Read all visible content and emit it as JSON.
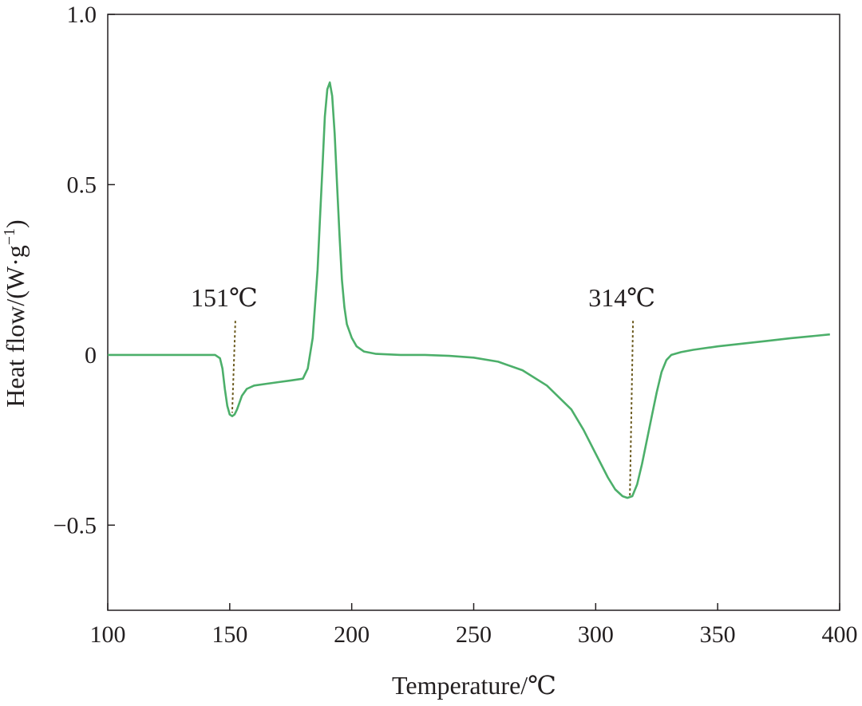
{
  "chart_data": {
    "type": "line",
    "xlabel": "Temperature/℃",
    "ylabel": "Heat flow/(W·g",
    "ylabel_sup": "−1",
    "ylabel_close": ")",
    "xlim": [
      100,
      400
    ],
    "ylim": [
      -0.75,
      1.0
    ],
    "x_ticks": [
      100,
      150,
      200,
      250,
      300,
      350,
      400
    ],
    "x_tick_labels": [
      "100",
      "150",
      "200",
      "250",
      "300",
      "350",
      "400"
    ],
    "y_ticks": [
      1.0,
      0.5,
      0,
      -0.5
    ],
    "y_tick_labels": [
      "1.0",
      "0.5",
      "0",
      "−0.5"
    ],
    "grid": false,
    "series_color": "#4caf6a",
    "marker_line_color": "#6b5a1e",
    "series": [
      {
        "points": [
          [
            100,
            0.0
          ],
          [
            110,
            0.0
          ],
          [
            120,
            0.0
          ],
          [
            130,
            0.0
          ],
          [
            140,
            0.0
          ],
          [
            144,
            0.0
          ],
          [
            146,
            -0.01
          ],
          [
            147,
            -0.04
          ],
          [
            148,
            -0.1
          ],
          [
            149,
            -0.15
          ],
          [
            150,
            -0.175
          ],
          [
            151,
            -0.18
          ],
          [
            152,
            -0.175
          ],
          [
            153,
            -0.16
          ],
          [
            154,
            -0.14
          ],
          [
            155,
            -0.12
          ],
          [
            157,
            -0.1
          ],
          [
            160,
            -0.09
          ],
          [
            165,
            -0.085
          ],
          [
            170,
            -0.08
          ],
          [
            175,
            -0.075
          ],
          [
            180,
            -0.07
          ],
          [
            182,
            -0.04
          ],
          [
            184,
            0.05
          ],
          [
            186,
            0.25
          ],
          [
            187,
            0.4
          ],
          [
            188,
            0.55
          ],
          [
            189,
            0.7
          ],
          [
            190,
            0.78
          ],
          [
            191,
            0.8
          ],
          [
            192,
            0.76
          ],
          [
            193,
            0.65
          ],
          [
            194,
            0.5
          ],
          [
            195,
            0.35
          ],
          [
            196,
            0.22
          ],
          [
            197,
            0.14
          ],
          [
            198,
            0.09
          ],
          [
            200,
            0.05
          ],
          [
            202,
            0.025
          ],
          [
            205,
            0.01
          ],
          [
            210,
            0.003
          ],
          [
            220,
            0.0
          ],
          [
            230,
            0.0
          ],
          [
            240,
            -0.003
          ],
          [
            250,
            -0.008
          ],
          [
            260,
            -0.02
          ],
          [
            270,
            -0.045
          ],
          [
            280,
            -0.09
          ],
          [
            290,
            -0.16
          ],
          [
            295,
            -0.22
          ],
          [
            300,
            -0.29
          ],
          [
            305,
            -0.36
          ],
          [
            308,
            -0.395
          ],
          [
            311,
            -0.415
          ],
          [
            313,
            -0.42
          ],
          [
            315,
            -0.415
          ],
          [
            317,
            -0.38
          ],
          [
            319,
            -0.32
          ],
          [
            321,
            -0.25
          ],
          [
            323,
            -0.18
          ],
          [
            325,
            -0.11
          ],
          [
            327,
            -0.05
          ],
          [
            329,
            -0.015
          ],
          [
            331,
            0.0
          ],
          [
            335,
            0.008
          ],
          [
            340,
            0.015
          ],
          [
            350,
            0.025
          ],
          [
            360,
            0.033
          ],
          [
            370,
            0.041
          ],
          [
            380,
            0.049
          ],
          [
            390,
            0.056
          ],
          [
            396,
            0.06
          ]
        ]
      }
    ],
    "annotations": [
      {
        "text": "151℃",
        "x_data": 151,
        "y_top": 0.1,
        "y_bottom": -0.17
      },
      {
        "text": "314℃",
        "x_data": 314,
        "y_top": 0.1,
        "y_bottom": -0.42
      }
    ]
  }
}
